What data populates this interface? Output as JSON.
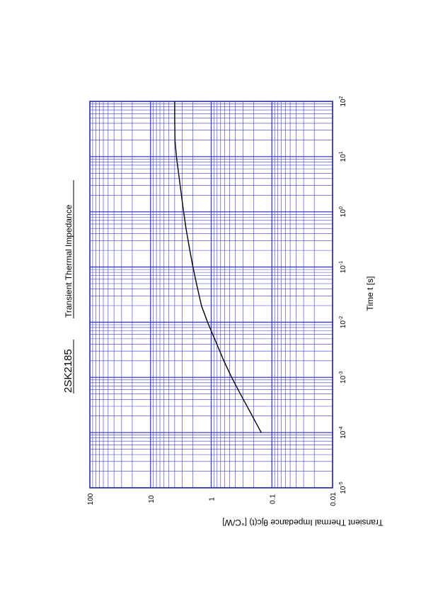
{
  "chart_data": {
    "type": "line",
    "orientation": "rotated-90-ccw",
    "title": "2SK2185",
    "subtitle": "Transient Thermal Impedance",
    "xlabel": "Time  t  [s]",
    "ylabel": "Transient Thermal Impedance   θjc(t)  [°C/W]",
    "x_scale": "log",
    "y_scale": "log",
    "xlim": [
      1e-05,
      100
    ],
    "ylim": [
      0.01,
      100
    ],
    "grid": true,
    "grid_color": "#3b3bd4",
    "line_color": "#000000",
    "x_ticks": [
      {
        "value": 1e-05,
        "base": "10",
        "exp": "-5"
      },
      {
        "value": 0.0001,
        "base": "10",
        "exp": "-4"
      },
      {
        "value": 0.001,
        "base": "10",
        "exp": "-3"
      },
      {
        "value": 0.01,
        "base": "10",
        "exp": "-2"
      },
      {
        "value": 0.1,
        "base": "10",
        "exp": "-1"
      },
      {
        "value": 1,
        "base": "10",
        "exp": "0"
      },
      {
        "value": 10,
        "base": "10",
        "exp": "1"
      },
      {
        "value": 100,
        "base": "10",
        "exp": "2"
      }
    ],
    "y_ticks": [
      {
        "value": 0.01,
        "label": "0.01"
      },
      {
        "value": 0.1,
        "label": "0.1"
      },
      {
        "value": 1,
        "label": "1"
      },
      {
        "value": 10,
        "label": "10"
      },
      {
        "value": 100,
        "label": "100"
      }
    ],
    "series": [
      {
        "x": [
          0.0001,
          0.0002,
          0.0005,
          0.001,
          0.002,
          0.005,
          0.01,
          0.02,
          0.05,
          0.1,
          0.2,
          0.5,
          1,
          2,
          5,
          10,
          20,
          50,
          100
        ],
        "y": [
          0.15,
          0.21,
          0.33,
          0.46,
          0.62,
          0.88,
          1.15,
          1.45,
          1.75,
          2.0,
          2.25,
          2.6,
          2.85,
          3.1,
          3.45,
          3.75,
          3.95,
          4.0,
          4.0
        ]
      }
    ]
  }
}
